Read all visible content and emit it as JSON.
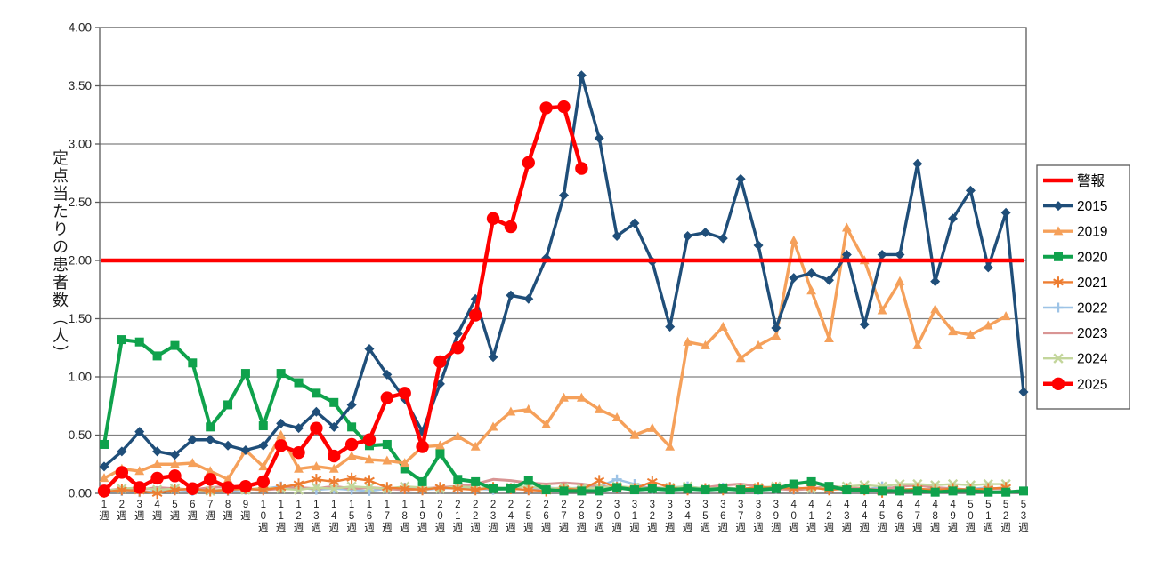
{
  "chart_data": {
    "type": "line",
    "title": "",
    "ylabel": "定点当たりの患者数（人）",
    "xlabel_suffix": "週",
    "x_weeks": 53,
    "ylim": [
      0,
      4
    ],
    "ytick_step": 0.5,
    "ytick_labels": [
      "0.00",
      "0.50",
      "1.00",
      "1.50",
      "2.00",
      "2.50",
      "3.00",
      "3.50",
      "4.00"
    ],
    "xtick_labels": [
      "1週",
      "2週",
      "3週",
      "4週",
      "5週",
      "6週",
      "7週",
      "8週",
      "9週",
      "10週",
      "11週",
      "12週",
      "13週",
      "14週",
      "15週",
      "16週",
      "17週",
      "18週",
      "19週",
      "20週",
      "21週",
      "22週",
      "23週",
      "24週",
      "25週",
      "26週",
      "27週",
      "28週",
      "29週",
      "30週",
      "31週",
      "32週",
      "33週",
      "34週",
      "35週",
      "36週",
      "37週",
      "38週",
      "39週",
      "40週",
      "41週",
      "42週",
      "43週",
      "44週",
      "45週",
      "46週",
      "47週",
      "48週",
      "49週",
      "50週",
      "51週",
      "52週",
      "53週"
    ],
    "grid": true,
    "legend_position": "right",
    "colors": {
      "grid": "#808080",
      "plot_border": "#595959",
      "axis_text": "#262626",
      "legend_border": "#595959",
      "legend_text": "#000000"
    },
    "alert_line": {
      "label": "警報",
      "value": 2.0,
      "color": "#FF0000"
    },
    "series": [
      {
        "name": "2015",
        "color": "#1F4E79",
        "marker": "diamond",
        "start_week": 1,
        "values": [
          0.23,
          0.36,
          0.53,
          0.36,
          0.33,
          0.46,
          0.46,
          0.41,
          0.37,
          0.41,
          0.6,
          0.56,
          0.7,
          0.57,
          0.76,
          1.24,
          1.02,
          0.81,
          0.53,
          0.94,
          1.37,
          1.67,
          1.17,
          1.7,
          1.67,
          2.02,
          2.56,
          3.59,
          3.05,
          2.21,
          2.32,
          1.99,
          1.43,
          2.21,
          2.24,
          2.19,
          2.7,
          2.13,
          1.42,
          1.85,
          1.89,
          1.83,
          2.05,
          1.45,
          2.05,
          2.05,
          2.83,
          1.82,
          2.36,
          2.6,
          1.94,
          2.41,
          0.87
        ]
      },
      {
        "name": "2019",
        "color": "#F5A05A",
        "marker": "triangle",
        "start_week": 1,
        "values": [
          0.13,
          0.21,
          0.19,
          0.25,
          0.25,
          0.26,
          0.19,
          0.12,
          0.37,
          0.23,
          0.5,
          0.21,
          0.23,
          0.21,
          0.32,
          0.29,
          0.28,
          0.26,
          0.4,
          0.41,
          0.49,
          0.4,
          0.57,
          0.7,
          0.72,
          0.59,
          0.82,
          0.82,
          0.72,
          0.65,
          0.5,
          0.56,
          0.4,
          1.3,
          1.27,
          1.43,
          1.16,
          1.27,
          1.35,
          2.17,
          1.74,
          1.33,
          2.28,
          2.0,
          1.57,
          1.82,
          1.27,
          1.58,
          1.39,
          1.36,
          1.44,
          1.52
        ]
      },
      {
        "name": "2020",
        "color": "#0FA24C",
        "marker": "square",
        "start_week": 1,
        "values": [
          0.42,
          1.32,
          1.3,
          1.18,
          1.27,
          1.12,
          0.57,
          0.76,
          1.03,
          0.58,
          1.03,
          0.95,
          0.86,
          0.78,
          0.57,
          0.41,
          0.42,
          0.21,
          0.1,
          0.34,
          0.12,
          0.1,
          0.04,
          0.04,
          0.11,
          0.03,
          0.02,
          0.02,
          0.02,
          0.05,
          0.03,
          0.04,
          0.03,
          0.04,
          0.03,
          0.04,
          0.03,
          0.03,
          0.04,
          0.08,
          0.1,
          0.06,
          0.03,
          0.03,
          0.02,
          0.02,
          0.02,
          0.01,
          0.02,
          0.02,
          0.01,
          0.01,
          0.02
        ]
      },
      {
        "name": "2021",
        "color": "#ED7D31",
        "marker": "asterisk",
        "start_week": 1,
        "values": [
          0.01,
          0.03,
          0.02,
          0.0,
          0.03,
          0.04,
          0.02,
          0.03,
          0.04,
          0.03,
          0.05,
          0.08,
          0.12,
          0.1,
          0.13,
          0.11,
          0.05,
          0.04,
          0.03,
          0.05,
          0.04,
          0.03,
          0.05,
          0.04,
          0.03,
          0.02,
          0.04,
          0.03,
          0.11,
          0.05,
          0.04,
          0.1,
          0.05,
          0.03,
          0.04,
          0.03,
          0.04,
          0.05,
          0.05,
          0.04,
          0.05,
          0.03,
          0.04,
          0.03,
          0.01,
          0.03,
          0.04,
          0.03,
          0.04,
          0.03,
          0.04,
          0.05
        ]
      },
      {
        "name": "2022",
        "color": "#9DC3E6",
        "marker": "plus",
        "start_week": 1,
        "values": [
          0.01,
          0.02,
          0.01,
          0.02,
          0.03,
          0.02,
          0.03,
          0.02,
          0.03,
          0.04,
          0.06,
          0.05,
          0.03,
          0.04,
          0.03,
          0.02,
          0.04,
          0.05,
          0.03,
          0.04,
          0.05,
          0.04,
          0.03,
          0.04,
          0.03,
          0.05,
          0.04,
          0.05,
          0.06,
          0.12,
          0.08,
          0.04,
          0.05,
          0.06,
          0.04,
          0.05,
          0.04,
          0.03,
          0.04,
          0.03,
          0.04,
          0.05,
          0.04,
          0.03,
          0.06,
          0.04,
          0.03,
          0.04,
          0.03,
          0.04,
          0.05,
          0.03
        ]
      },
      {
        "name": "2023",
        "color": "#D99594",
        "marker": "none",
        "start_week": 1,
        "values": [
          0.02,
          0.04,
          0.03,
          0.05,
          0.04,
          0.03,
          0.05,
          0.06,
          0.04,
          0.03,
          0.04,
          0.05,
          0.04,
          0.06,
          0.04,
          0.05,
          0.04,
          0.03,
          0.04,
          0.05,
          0.06,
          0.08,
          0.12,
          0.11,
          0.09,
          0.08,
          0.09,
          0.08,
          0.06,
          0.05,
          0.04,
          0.05,
          0.04,
          0.03,
          0.05,
          0.07,
          0.08,
          0.06,
          0.04,
          0.03,
          0.04,
          0.06,
          0.05,
          0.04,
          0.03,
          0.06,
          0.07,
          0.05,
          0.04,
          0.03,
          0.04,
          0.04
        ]
      },
      {
        "name": "2024",
        "color": "#C3D69B",
        "marker": "x",
        "start_week": 1,
        "values": [
          0.02,
          0.04,
          0.05,
          0.03,
          0.04,
          0.03,
          0.02,
          0.04,
          0.03,
          0.05,
          0.04,
          0.03,
          0.05,
          0.04,
          0.06,
          0.05,
          0.04,
          0.06,
          0.05,
          0.04,
          0.06,
          0.05,
          0.04,
          0.05,
          0.06,
          0.04,
          0.05,
          0.04,
          0.05,
          0.06,
          0.05,
          0.04,
          0.05,
          0.06,
          0.04,
          0.05,
          0.04,
          0.05,
          0.06,
          0.05,
          0.04,
          0.05,
          0.06,
          0.07,
          0.06,
          0.08,
          0.08,
          0.07,
          0.08,
          0.07,
          0.08,
          0.08
        ]
      },
      {
        "name": "2025",
        "color": "#FF0000",
        "marker": "circle",
        "start_week": 1,
        "values": [
          0.02,
          0.18,
          0.05,
          0.13,
          0.15,
          0.04,
          0.12,
          0.05,
          0.06,
          0.1,
          0.41,
          0.35,
          0.56,
          0.32,
          0.42,
          0.46,
          0.82,
          0.86,
          0.4,
          1.13,
          1.25,
          1.53,
          2.36,
          2.29,
          2.84,
          3.31,
          3.32,
          2.79
        ]
      }
    ]
  }
}
